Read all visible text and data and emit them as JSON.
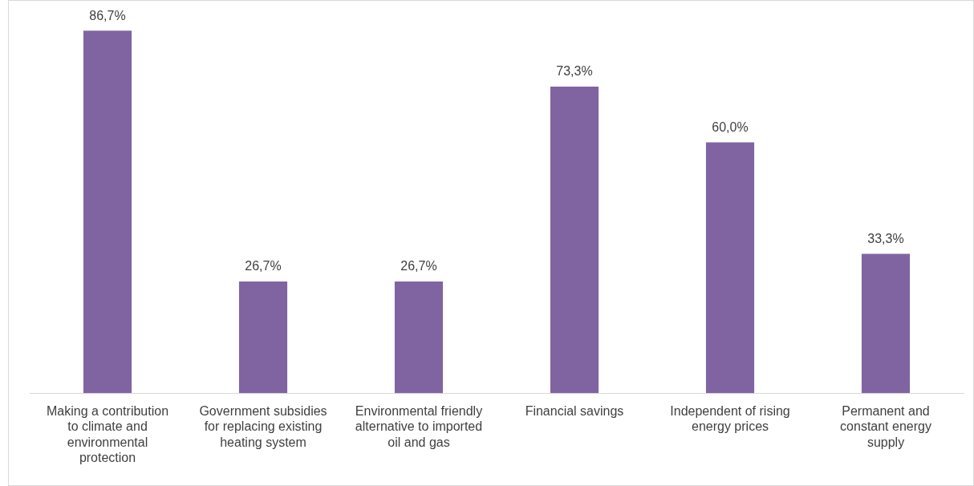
{
  "chart_data": {
    "type": "bar",
    "categories": [
      "Making a contribution to climate and environmental protection",
      "Government subsidies for replacing existing heating system",
      "Environmental friendly alternative to imported oil and gas",
      "Financial savings",
      "Independent of rising energy prices",
      "Permanent and constant energy supply"
    ],
    "values": [
      86.7,
      26.7,
      26.7,
      73.3,
      60.0,
      33.3
    ],
    "value_labels": [
      "86,7%",
      "26,7%",
      "26,7%",
      "73,3%",
      "60,0%",
      "33,3%"
    ],
    "color": "#8064a2",
    "grid": false,
    "legend": false
  }
}
